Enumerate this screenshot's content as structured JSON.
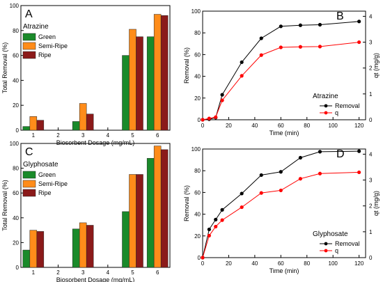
{
  "chart_data": [
    {
      "panel": "A",
      "type": "bar",
      "name": "Atrazine",
      "xlabel": "Biosorbent Dosage (mg/mL)",
      "ylabel": "Total Removal (%)",
      "ylim": [
        0,
        100
      ],
      "yticks": [
        0,
        20,
        40,
        60,
        80,
        100
      ],
      "categories": [
        "1",
        "2",
        "3",
        "4",
        "5",
        "6"
      ],
      "legend_position": "top-left",
      "series": [
        {
          "name": "Green",
          "color": "#1a8a2a",
          "values": [
            3,
            null,
            7,
            null,
            60,
            75
          ]
        },
        {
          "name": "Semi-Ripe",
          "color": "#ff8c1a",
          "values": [
            11,
            null,
            21.5,
            null,
            81,
            93
          ]
        },
        {
          "name": "Ripe",
          "color": "#8b1a1a",
          "values": [
            8,
            null,
            13,
            null,
            75,
            92
          ]
        }
      ]
    },
    {
      "panel": "B",
      "type": "line",
      "name": "Atrazine",
      "xlabel": "Time (min)",
      "ylabel": "Removal (%)",
      "y2label": "qt (mg/g)",
      "xlim": [
        0,
        125
      ],
      "ylim": [
        0,
        100
      ],
      "y2lim": [
        0,
        4.2
      ],
      "xticks": [
        0,
        20,
        40,
        60,
        80,
        100,
        120
      ],
      "yticks": [
        0,
        20,
        40,
        60,
        80,
        100
      ],
      "y2ticks": [
        0,
        1,
        2,
        3,
        4
      ],
      "legend_position": "bottom-right",
      "series": [
        {
          "name": "Removal",
          "color": "#000000",
          "axis": "left",
          "x": [
            0,
            5,
            10,
            15,
            30,
            45,
            60,
            75,
            90,
            120
          ],
          "y": [
            0,
            0.5,
            2,
            23,
            53,
            75,
            86,
            87,
            87.5,
            90.5
          ]
        },
        {
          "name": "q",
          "color": "#ff0000",
          "axis": "right",
          "x": [
            0,
            5,
            10,
            15,
            30,
            45,
            60,
            75,
            90,
            120
          ],
          "y": [
            0,
            0.05,
            0.1,
            0.75,
            1.7,
            2.5,
            2.8,
            2.82,
            2.83,
            3.0
          ]
        }
      ]
    },
    {
      "panel": "C",
      "type": "bar",
      "name": "Glyphosate",
      "xlabel": "Biosorbent Dosage (mg/mL)",
      "ylabel": "Total Removal (%)",
      "ylim": [
        0,
        100
      ],
      "yticks": [
        0,
        20,
        40,
        60,
        80,
        100
      ],
      "categories": [
        "1",
        "2",
        "3",
        "4",
        "5",
        "6"
      ],
      "legend_position": "top-left",
      "series": [
        {
          "name": "Green",
          "color": "#1a8a2a",
          "values": [
            14,
            null,
            31,
            null,
            45,
            88
          ]
        },
        {
          "name": "Semi-Ripe",
          "color": "#ff8c1a",
          "values": [
            30,
            null,
            36,
            null,
            75,
            98
          ]
        },
        {
          "name": "Ripe",
          "color": "#8b1a1a",
          "values": [
            29,
            null,
            34,
            null,
            75,
            95
          ]
        }
      ]
    },
    {
      "panel": "D",
      "type": "line",
      "name": "Glyphosate",
      "xlabel": "Time (min)",
      "ylabel": "Removal (%)",
      "y2label": "qt (mg/g)",
      "xlim": [
        0,
        125
      ],
      "ylim": [
        0,
        100
      ],
      "y2lim": [
        0,
        4.2
      ],
      "xticks": [
        0,
        20,
        40,
        60,
        80,
        100,
        120
      ],
      "yticks": [
        0,
        20,
        40,
        60,
        80,
        100
      ],
      "y2ticks": [
        0,
        1,
        2,
        3,
        4
      ],
      "legend_position": "bottom-right",
      "series": [
        {
          "name": "Removal",
          "color": "#000000",
          "axis": "left",
          "x": [
            0,
            5,
            10,
            15,
            30,
            45,
            60,
            75,
            90,
            120
          ],
          "y": [
            0,
            26,
            35,
            44,
            59,
            76,
            79,
            92,
            97.5,
            98
          ]
        },
        {
          "name": "q",
          "color": "#ff0000",
          "axis": "right",
          "x": [
            0,
            5,
            10,
            15,
            30,
            45,
            60,
            75,
            90,
            120
          ],
          "y": [
            0,
            0.85,
            1.2,
            1.45,
            1.95,
            2.5,
            2.6,
            3.05,
            3.25,
            3.3
          ]
        }
      ]
    }
  ]
}
